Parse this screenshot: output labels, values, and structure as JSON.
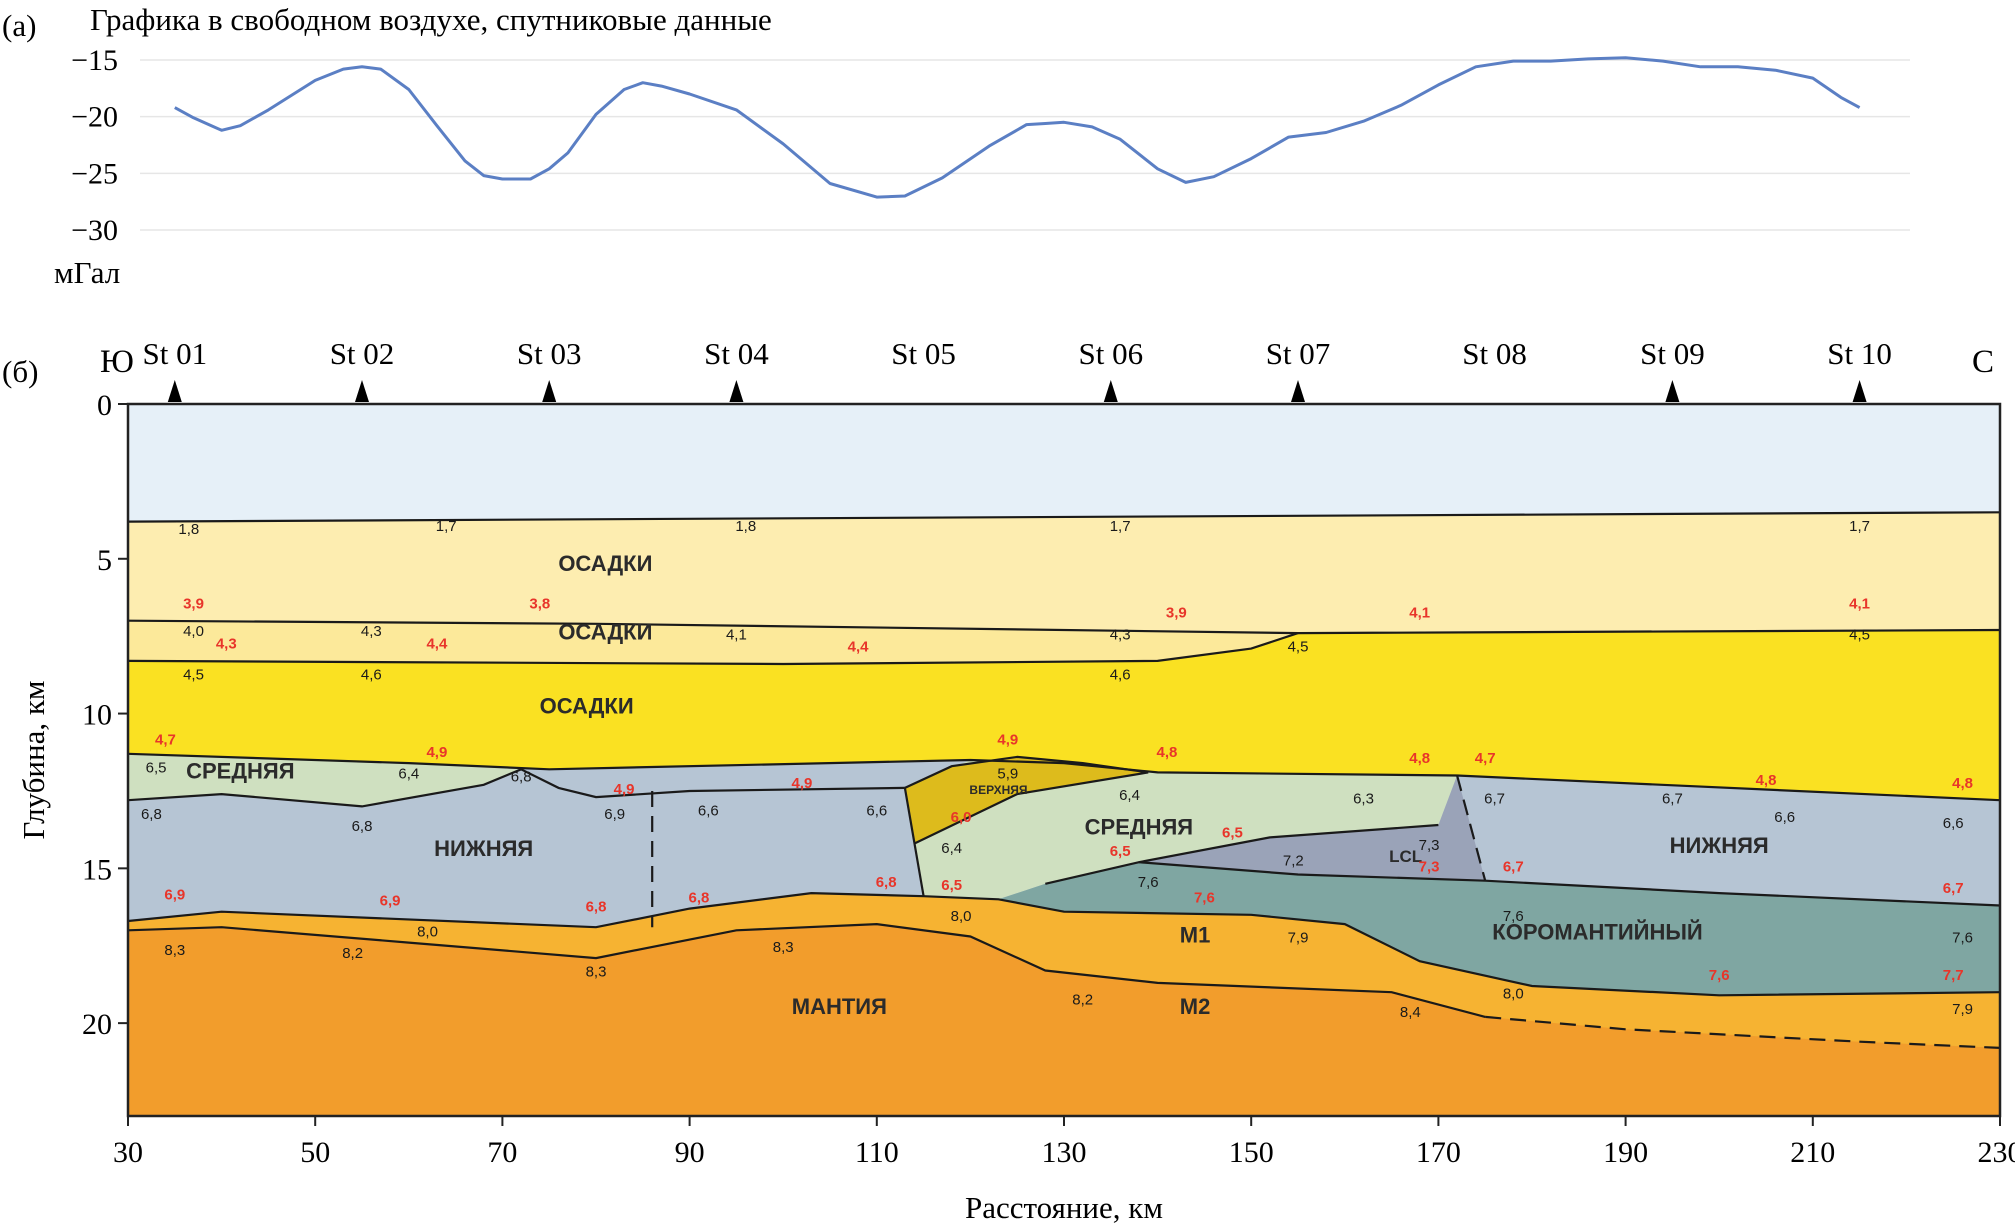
{
  "panel_a": {
    "tag": "(а)",
    "title": "Графика в свободном воздухе, спутниковые данные",
    "unit": "мГал"
  },
  "panel_b": {
    "tag": "(б)",
    "south": "Ю",
    "north": "С",
    "ylabel": "Глубина, км",
    "xlabel": "Расстояние, км"
  },
  "colors": {
    "gravity_line": "#5b7fc4",
    "water": "#e6f0f8",
    "sediment_1": "#fdedb0",
    "sediment_2": "#fce99a",
    "sediment_3": "#fae122",
    "middle_crust": "#cfe0c0",
    "lower_crust": "#b6c5d4",
    "upper_wedge": "#ddbb1c",
    "lcl": "#9aa3b8",
    "coromantic": "#7fa6a2",
    "m1": "#f6b332",
    "mantle": "#f29d2c",
    "red_label": "#e8352a"
  },
  "chart_data": [
    {
      "type": "line",
      "panel": "а",
      "title": "Графика в свободном воздухе, спутниковые данные",
      "ylabel": "мГал",
      "xlim": [
        30,
        230
      ],
      "ylim": [
        -30,
        -15
      ],
      "yticks": [
        "−15",
        "−20",
        "−25",
        "−30"
      ],
      "ytick_values": [
        -15,
        -20,
        -25,
        -30
      ],
      "series": [
        {
          "x": [
            35,
            37,
            40,
            42,
            45,
            50,
            53,
            55,
            57,
            60,
            63,
            66,
            68,
            70,
            73,
            75,
            77,
            80,
            83,
            85,
            87,
            90,
            95,
            100,
            105,
            110,
            113,
            117,
            122,
            126,
            128,
            130,
            133,
            136,
            140,
            143,
            146,
            150,
            154,
            158,
            162,
            166,
            170,
            174,
            178,
            182,
            186,
            190,
            194,
            198,
            202,
            206,
            210,
            213,
            215
          ],
          "y": [
            -19.2,
            -20.1,
            -21.2,
            -20.8,
            -19.4,
            -16.8,
            -15.8,
            -15.6,
            -15.8,
            -17.6,
            -20.8,
            -23.9,
            -25.2,
            -25.5,
            -25.5,
            -24.6,
            -23.2,
            -19.8,
            -17.6,
            -17.0,
            -17.3,
            -18.0,
            -19.4,
            -22.4,
            -25.9,
            -27.1,
            -27.0,
            -25.4,
            -22.6,
            -20.7,
            -20.6,
            -20.5,
            -20.9,
            -22.0,
            -24.6,
            -25.8,
            -25.3,
            -23.7,
            -21.8,
            -21.4,
            -20.4,
            -19.0,
            -17.2,
            -15.6,
            -15.1,
            -15.1,
            -14.9,
            -14.8,
            -15.1,
            -15.6,
            -15.6,
            -15.9,
            -16.6,
            -18.3,
            -19.2
          ]
        }
      ]
    },
    {
      "type": "area",
      "panel": "б",
      "xlabel": "Расстояние, км",
      "ylabel": "Глубина, км",
      "xlim": [
        30,
        230
      ],
      "ylim": [
        23,
        0
      ],
      "xticks": [
        30,
        50,
        70,
        90,
        110,
        130,
        150,
        170,
        190,
        210,
        230
      ],
      "yticks": [
        0,
        5,
        10,
        15,
        20
      ],
      "stations": [
        {
          "name": "St 01",
          "x": 35,
          "marker": true
        },
        {
          "name": "St 02",
          "x": 55,
          "marker": true
        },
        {
          "name": "St 03",
          "x": 75,
          "marker": true
        },
        {
          "name": "St 04",
          "x": 95,
          "marker": true
        },
        {
          "name": "St 05",
          "x": 115,
          "marker": false
        },
        {
          "name": "St 06",
          "x": 135,
          "marker": true
        },
        {
          "name": "St 07",
          "x": 155,
          "marker": true
        },
        {
          "name": "St 08",
          "x": 176,
          "marker": false
        },
        {
          "name": "St 09",
          "x": 195,
          "marker": true
        },
        {
          "name": "St 10",
          "x": 215,
          "marker": true
        }
      ],
      "layer_names": [
        {
          "text": "ОСАДКИ",
          "x": 81,
          "y": 5.4,
          "size": "m"
        },
        {
          "text": "ОСАДКИ",
          "x": 81,
          "y": 7.6,
          "size": "m"
        },
        {
          "text": "ОСАДКИ",
          "x": 79,
          "y": 10.0,
          "size": "m"
        },
        {
          "text": "СРЕДНЯЯ",
          "x": 42,
          "y": 12.1,
          "size": "m"
        },
        {
          "text": "НИЖНЯЯ",
          "x": 68,
          "y": 14.6,
          "size": "m"
        },
        {
          "text": "ВЕРХНЯЯ",
          "x": 123,
          "y": 12.6,
          "size": "xs"
        },
        {
          "text": "СРЕДНЯЯ",
          "x": 138,
          "y": 13.9,
          "size": "m"
        },
        {
          "text": "LCL",
          "x": 166.5,
          "y": 14.8,
          "size": "s"
        },
        {
          "text": "НИЖНЯЯ",
          "x": 200,
          "y": 14.5,
          "size": "m"
        },
        {
          "text": "КОРОМАНТИЙНЫЙ",
          "x": 187,
          "y": 17.3,
          "size": "m"
        },
        {
          "text": "М1",
          "x": 144,
          "y": 17.4,
          "size": "m"
        },
        {
          "text": "М2",
          "x": 144,
          "y": 19.7,
          "size": "m"
        },
        {
          "text": "МАНТИЯ",
          "x": 106,
          "y": 19.7,
          "size": "m"
        }
      ],
      "velocities_black": [
        {
          "text": "1,8",
          "x": 36.5,
          "y": 4.2
        },
        {
          "text": "1,7",
          "x": 64,
          "y": 4.1
        },
        {
          "text": "1,8",
          "x": 96,
          "y": 4.1
        },
        {
          "text": "1,7",
          "x": 136,
          "y": 4.1
        },
        {
          "text": "1,7",
          "x": 215,
          "y": 4.1
        },
        {
          "text": "4,0",
          "x": 37,
          "y": 7.5
        },
        {
          "text": "4,3",
          "x": 56,
          "y": 7.5
        },
        {
          "text": "4,1",
          "x": 95,
          "y": 7.6
        },
        {
          "text": "4,3",
          "x": 136,
          "y": 7.6
        },
        {
          "text": "4,5",
          "x": 155,
          "y": 8.0
        },
        {
          "text": "4,5",
          "x": 215,
          "y": 7.6
        },
        {
          "text": "4,5",
          "x": 37,
          "y": 8.9
        },
        {
          "text": "4,6",
          "x": 56,
          "y": 8.9
        },
        {
          "text": "4,6",
          "x": 136,
          "y": 8.9
        },
        {
          "text": "6,5",
          "x": 33,
          "y": 11.9
        },
        {
          "text": "6,4",
          "x": 60,
          "y": 12.1
        },
        {
          "text": "6,8",
          "x": 32.5,
          "y": 13.4
        },
        {
          "text": "6,8",
          "x": 55,
          "y": 13.8
        },
        {
          "text": "6,8",
          "x": 72,
          "y": 12.2
        },
        {
          "text": "6,9",
          "x": 82,
          "y": 13.4
        },
        {
          "text": "6,6",
          "x": 92,
          "y": 13.3
        },
        {
          "text": "6,6",
          "x": 110,
          "y": 13.3
        },
        {
          "text": "5,9",
          "x": 124,
          "y": 12.1
        },
        {
          "text": "6,4",
          "x": 137,
          "y": 12.8
        },
        {
          "text": "6,3",
          "x": 162,
          "y": 12.9
        },
        {
          "text": "6,7",
          "x": 176,
          "y": 12.9
        },
        {
          "text": "6,7",
          "x": 195,
          "y": 12.9
        },
        {
          "text": "6,6",
          "x": 207,
          "y": 13.5
        },
        {
          "text": "6,6",
          "x": 225,
          "y": 13.7
        },
        {
          "text": "6,4",
          "x": 118,
          "y": 14.5
        },
        {
          "text": "7,3",
          "x": 169,
          "y": 14.4
        },
        {
          "text": "7,2",
          "x": 154.5,
          "y": 14.9
        },
        {
          "text": "7,6",
          "x": 139,
          "y": 15.6
        },
        {
          "text": "8,0",
          "x": 119,
          "y": 16.7
        },
        {
          "text": "8,0",
          "x": 62,
          "y": 17.2
        },
        {
          "text": "8,3",
          "x": 35,
          "y": 17.8
        },
        {
          "text": "8,2",
          "x": 54,
          "y": 17.9
        },
        {
          "text": "8,3",
          "x": 80,
          "y": 18.5
        },
        {
          "text": "8,3",
          "x": 100,
          "y": 17.7
        },
        {
          "text": "7,9",
          "x": 155,
          "y": 17.4
        },
        {
          "text": "7,6",
          "x": 178,
          "y": 16.7
        },
        {
          "text": "7,6",
          "x": 226,
          "y": 17.4
        },
        {
          "text": "8,2",
          "x": 132,
          "y": 19.4
        },
        {
          "text": "8,0",
          "x": 178,
          "y": 19.2
        },
        {
          "text": "8,4",
          "x": 167,
          "y": 19.8
        },
        {
          "text": "7,9",
          "x": 226,
          "y": 19.7
        }
      ],
      "velocities_red": [
        {
          "text": "3,9",
          "x": 37,
          "y": 6.6
        },
        {
          "text": "3,8",
          "x": 74,
          "y": 6.6
        },
        {
          "text": "3,9",
          "x": 142,
          "y": 6.9
        },
        {
          "text": "4,1",
          "x": 168,
          "y": 6.9
        },
        {
          "text": "4,1",
          "x": 215,
          "y": 6.6
        },
        {
          "text": "4,3",
          "x": 40.5,
          "y": 7.9
        },
        {
          "text": "4,4",
          "x": 63,
          "y": 7.9
        },
        {
          "text": "4,4",
          "x": 108,
          "y": 8.0
        },
        {
          "text": "4,7",
          "x": 34,
          "y": 11.0
        },
        {
          "text": "4,9",
          "x": 63,
          "y": 11.4
        },
        {
          "text": "4,9",
          "x": 83,
          "y": 12.6
        },
        {
          "text": "4,9",
          "x": 102,
          "y": 12.4
        },
        {
          "text": "4,9",
          "x": 124,
          "y": 11.0
        },
        {
          "text": "4,8",
          "x": 141,
          "y": 11.4
        },
        {
          "text": "4,8",
          "x": 168,
          "y": 11.6
        },
        {
          "text": "4,7",
          "x": 175,
          "y": 11.6
        },
        {
          "text": "4,8",
          "x": 205,
          "y": 12.3
        },
        {
          "text": "4,8",
          "x": 226,
          "y": 12.4
        },
        {
          "text": "6,0",
          "x": 119,
          "y": 13.5
        },
        {
          "text": "6,5",
          "x": 148,
          "y": 14.0
        },
        {
          "text": "6,5",
          "x": 136,
          "y": 14.6
        },
        {
          "text": "7,3",
          "x": 169,
          "y": 15.1
        },
        {
          "text": "6,7",
          "x": 178,
          "y": 15.1
        },
        {
          "text": "7,6",
          "x": 145,
          "y": 16.1
        },
        {
          "text": "6,7",
          "x": 225,
          "y": 15.8
        },
        {
          "text": "6,9",
          "x": 35,
          "y": 16.0
        },
        {
          "text": "6,9",
          "x": 58,
          "y": 16.2
        },
        {
          "text": "6,8",
          "x": 80,
          "y": 16.4
        },
        {
          "text": "6,8",
          "x": 91,
          "y": 16.1
        },
        {
          "text": "6,8",
          "x": 111,
          "y": 15.6
        },
        {
          "text": "6,5",
          "x": 118,
          "y": 15.7
        },
        {
          "text": "7,6",
          "x": 200,
          "y": 18.6
        },
        {
          "text": "7,7",
          "x": 225,
          "y": 18.6
        }
      ]
    }
  ]
}
